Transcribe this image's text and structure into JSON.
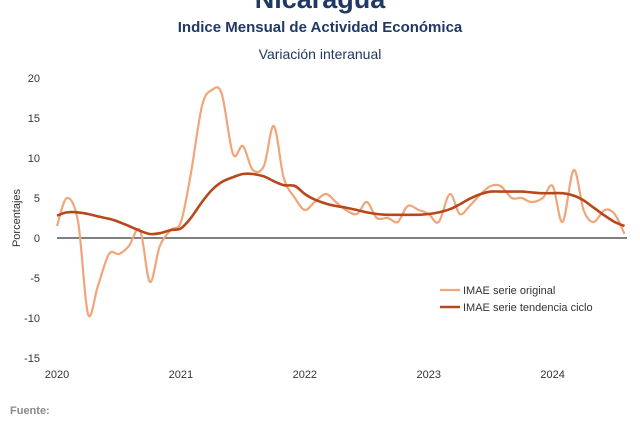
{
  "header": {
    "title": "Nicaragua",
    "subtitle": "Indice Mensual de  Actividad Económica",
    "subtitle2": "Variación interanual"
  },
  "footer": {
    "source_label": "Fuente:"
  },
  "colors": {
    "original": "#f0a57a",
    "tendencia": "#b8471b",
    "title": "#1f3864"
  },
  "chart_data": {
    "type": "line",
    "ylabel": "Porcentajes",
    "ylim": [
      -15,
      20
    ],
    "yticks": [
      -15,
      -10,
      -5,
      0,
      5,
      10,
      15,
      20
    ],
    "xlim": [
      2020.0,
      2024.6
    ],
    "xticks": [
      2020,
      2021,
      2022,
      2023,
      2024
    ],
    "xtick_labels": [
      "2020",
      "2021",
      "2022",
      "2023",
      "2024"
    ],
    "legend_position": "bottom-right",
    "series": [
      {
        "name": "IMAE serie original",
        "x": [
          2020.0,
          2020.08,
          2020.17,
          2020.25,
          2020.33,
          2020.42,
          2020.5,
          2020.58,
          2020.67,
          2020.75,
          2020.83,
          2020.92,
          2021.0,
          2021.08,
          2021.17,
          2021.25,
          2021.33,
          2021.42,
          2021.5,
          2021.58,
          2021.67,
          2021.75,
          2021.83,
          2021.92,
          2022.0,
          2022.08,
          2022.17,
          2022.25,
          2022.33,
          2022.42,
          2022.5,
          2022.58,
          2022.67,
          2022.75,
          2022.83,
          2022.92,
          2023.0,
          2023.08,
          2023.17,
          2023.25,
          2023.33,
          2023.42,
          2023.5,
          2023.58,
          2023.67,
          2023.75,
          2023.83,
          2023.92,
          2024.0,
          2024.08,
          2024.17,
          2024.25,
          2024.33,
          2024.42,
          2024.5,
          2024.58
        ],
        "y": [
          1.5,
          5.0,
          2.0,
          -9.5,
          -6.0,
          -2.0,
          -2.0,
          -1.0,
          1.0,
          -5.5,
          -1.0,
          1.0,
          2.0,
          8.0,
          16.5,
          18.5,
          18.0,
          10.5,
          11.5,
          8.5,
          9.0,
          14.0,
          7.5,
          5.0,
          3.5,
          4.5,
          5.5,
          4.5,
          3.5,
          3.0,
          4.5,
          2.5,
          2.5,
          2.0,
          4.0,
          3.5,
          3.0,
          2.0,
          5.5,
          3.0,
          4.0,
          5.5,
          6.5,
          6.5,
          5.0,
          5.0,
          4.5,
          5.0,
          6.5,
          2.0,
          8.5,
          3.5,
          2.0,
          3.5,
          3.0,
          0.5
        ]
      },
      {
        "name": "IMAE serie  tendencia ciclo",
        "x": [
          2020.0,
          2020.08,
          2020.17,
          2020.25,
          2020.33,
          2020.42,
          2020.5,
          2020.58,
          2020.67,
          2020.75,
          2020.83,
          2020.92,
          2021.0,
          2021.08,
          2021.17,
          2021.25,
          2021.33,
          2021.42,
          2021.5,
          2021.58,
          2021.67,
          2021.75,
          2021.83,
          2021.92,
          2022.0,
          2022.08,
          2022.17,
          2022.25,
          2022.33,
          2022.42,
          2022.5,
          2022.58,
          2022.67,
          2022.75,
          2022.83,
          2022.92,
          2023.0,
          2023.08,
          2023.17,
          2023.25,
          2023.33,
          2023.42,
          2023.5,
          2023.58,
          2023.67,
          2023.75,
          2023.83,
          2023.92,
          2024.0,
          2024.08,
          2024.17,
          2024.25,
          2024.33,
          2024.42,
          2024.5,
          2024.58
        ],
        "y": [
          2.8,
          3.2,
          3.2,
          3.0,
          2.7,
          2.4,
          2.0,
          1.5,
          0.9,
          0.5,
          0.6,
          1.0,
          1.2,
          2.5,
          4.5,
          6.0,
          7.0,
          7.6,
          8.0,
          8.0,
          7.7,
          7.1,
          6.6,
          6.5,
          5.5,
          4.8,
          4.3,
          4.0,
          3.8,
          3.5,
          3.2,
          3.0,
          2.9,
          2.9,
          2.9,
          2.9,
          3.0,
          3.2,
          3.6,
          4.2,
          4.9,
          5.5,
          5.8,
          5.8,
          5.8,
          5.8,
          5.7,
          5.6,
          5.6,
          5.6,
          5.3,
          4.7,
          3.8,
          2.8,
          2.0,
          1.5
        ]
      }
    ]
  }
}
